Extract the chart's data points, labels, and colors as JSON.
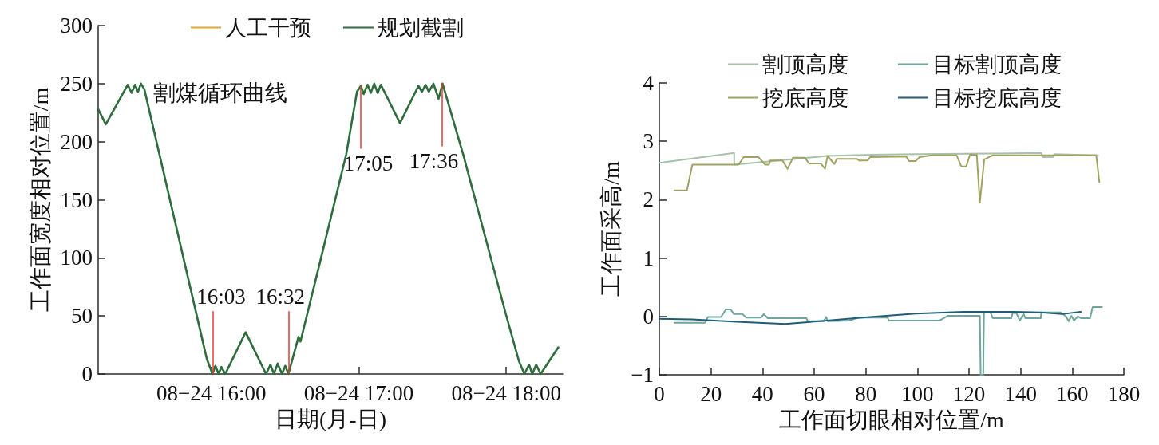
{
  "chart_data": [
    {
      "type": "line",
      "xlabel": "日期(月-日)",
      "ylabel": "工作面宽度相对位置/m",
      "legend": "top",
      "x": [
        "--08-24T15:14",
        "--08-24T15:17:06",
        "--08-24T15:26",
        "--08-24T15:27:36",
        "--08-24T15:29",
        "--08-24T15:30:12",
        "--08-24T15:31:24",
        "--08-24T15:32:48",
        "--08-24T15:58:12",
        "--08-24T16:00:30",
        "--08-24T16:01:42",
        "--08-24T16:03",
        "--08-24T16:04:06",
        "--08-24T16:05:42",
        "--08-24T16:14",
        "--08-24T16:22:18",
        "--08-24T16:24:06",
        "--08-24T16:25:30",
        "--08-24T16:27",
        "--08-24T16:28:48",
        "--08-24T16:30:06",
        "--08-24T16:31:24",
        "--08-24T16:35:30",
        "--08-24T16:36:18",
        "--08-24T16:44:06",
        "--08-24T16:54:54",
        "--08-24T16:59:18",
        "--08-24T17:00:54",
        "--08-24T17:02",
        "--08-24T17:03:36",
        "--08-24T17:04:54",
        "--08-24T17:06:18",
        "--08-24T17:07:42",
        "--08-24T17:09",
        "--08-24T17:16:48",
        "--08-24T17:24:18",
        "--08-24T17:25:42",
        "--08-24T17:27:12",
        "--08-24T17:28:30",
        "--08-24T17:30:24",
        "--08-24T17:32:30",
        "--08-24T17:34:06",
        "--08-24T17:42:30",
        "--08-24T17:59:48",
        "--08-24T18:05:12",
        "--08-24T18:07:24",
        "--08-24T18:09:18",
        "--08-24T18:10:36",
        "--08-24T18:12:12",
        "--08-24T18:14",
        "--08-24T18:21:12"
      ],
      "series": [
        {
          "name": "人工干预",
          "color": "#e3a72f",
          "values": [
            null,
            null,
            null,
            null,
            null,
            null,
            null,
            null,
            null,
            null,
            null,
            null,
            null,
            null,
            null,
            null,
            null,
            null,
            null,
            null,
            null,
            null,
            null,
            null,
            null,
            null,
            null,
            null,
            null,
            null,
            null,
            null,
            null,
            null,
            null,
            null,
            null,
            null,
            null,
            null,
            null,
            null,
            null,
            null,
            null,
            null,
            null,
            null,
            null,
            null,
            null
          ]
        },
        {
          "name": "规划截割",
          "color": "#2e6d3c",
          "values": [
            228,
            215,
            249,
            242,
            249,
            243,
            250,
            245,
            13,
            0,
            7,
            0,
            6,
            0,
            36,
            0,
            8,
            0,
            9,
            0,
            7,
            0,
            32,
            28,
            95,
            189,
            243,
            248,
            241,
            249,
            242,
            250,
            242,
            249,
            216,
            248,
            243,
            249,
            243,
            250,
            237,
            250,
            189,
            52,
            11,
            0,
            8,
            0,
            8,
            0,
            23
          ]
        }
      ],
      "xlim": [
        "--08-24T15:14",
        "--08-24T18:23"
      ],
      "xticks": [
        {
          "value": "--08-24T16:00",
          "label": "08−24 16:00"
        },
        {
          "value": "--08-24T17:00",
          "label": "08−24 17:00"
        },
        {
          "value": "--08-24T18:00",
          "label": "08−24 18:00"
        }
      ],
      "ylim": [
        0,
        300
      ],
      "yticks": [
        0,
        50,
        100,
        150,
        200,
        250,
        300
      ],
      "annotations": [
        "割煤循环曲线",
        {
          "text": "16:03",
          "x": "--08-24T16:00:48",
          "y": 0
        },
        {
          "text": "16:32",
          "x": "--08-24T16:31:24",
          "y": 0
        },
        {
          "text": "17:05",
          "x": "--08-24T17:00:42",
          "y": 248
        },
        {
          "text": "17:36",
          "x": "--08-24T17:33:48",
          "y": 250
        }
      ]
    },
    {
      "type": "line",
      "xlabel": "工作面切眼相对位置/m",
      "ylabel": "工作面采高/m",
      "legend": "top",
      "series": [
        {
          "name": "割顶高度",
          "color": "#a6c2a9",
          "x": [
            0,
            29,
            29,
            41.5,
            65,
            82,
            100,
            148,
            148.5,
            152.5,
            153,
            170
          ],
          "values": [
            2.63,
            2.8,
            2.6,
            2.65,
            2.75,
            2.77,
            2.78,
            2.8,
            2.73,
            2.73,
            2.78,
            2.76
          ]
        },
        {
          "name": "挖底高度",
          "color": "#a2a363",
          "x": [
            5.9,
            10.7,
            12.8,
            30.7,
            32.7,
            38.4,
            41,
            42.5,
            43,
            47.7,
            49.7,
            51.8,
            56.4,
            58,
            62.6,
            64.2,
            65.2,
            67.8,
            68.8,
            76.6,
            77.4,
            80.7,
            81.7,
            95.7,
            96.7,
            99.3,
            100.8,
            105.5,
            115.2,
            117,
            118.9,
            120.4,
            123,
            124.2,
            125.9,
            129.2,
            169.3,
            170.5
          ],
          "values": [
            2.16,
            2.16,
            2.6,
            2.6,
            2.73,
            2.73,
            2.6,
            2.6,
            2.67,
            2.67,
            2.53,
            2.72,
            2.72,
            2.62,
            2.62,
            2.53,
            2.75,
            2.61,
            2.7,
            2.7,
            2.67,
            2.67,
            2.73,
            2.74,
            2.66,
            2.66,
            2.73,
            2.76,
            2.76,
            2.57,
            2.57,
            2.77,
            2.77,
            1.95,
            2.69,
            2.76,
            2.76,
            2.3
          ]
        },
        {
          "name": "目标割顶高度",
          "color": "#6ea69e",
          "x": [
            5.9,
            17.7,
            18.8,
            23.9,
            25.8,
            27.6,
            28.9,
            32.2,
            33.7,
            39.4,
            40.5,
            42,
            57,
            57.5,
            63.7,
            64.7,
            65.2,
            73.5,
            77.1,
            88.5,
            88.9,
            108.6,
            111.7,
            121.5,
            124.2,
            124.5,
            125.5,
            125.8,
            128.2,
            129.2,
            136.4,
            136.9,
            138.3,
            139.7,
            141.1,
            141.8,
            147.8,
            148,
            155.5,
            157.6,
            158.6,
            159.7,
            160.7,
            162.2,
            163.3,
            166.9,
            167.9,
            171.5
          ],
          "values": [
            -0.11,
            -0.11,
            -0.01,
            -0.01,
            0.12,
            0.12,
            0.04,
            0.04,
            -0.02,
            -0.02,
            0.04,
            -0.03,
            -0.03,
            -0.08,
            -0.08,
            -0.01,
            -0.08,
            -0.07,
            -0.02,
            -0.02,
            -0.07,
            -0.07,
            0.01,
            0.01,
            0.01,
            -1,
            -1,
            0.08,
            0.08,
            -0.03,
            -0.03,
            0.06,
            0.06,
            -0.07,
            0.05,
            -0.03,
            -0.03,
            0.07,
            0.07,
            0,
            -0.08,
            0.01,
            -0.07,
            0,
            -0.03,
            -0.03,
            0.16,
            0.16
          ]
        },
        {
          "name": "目标挖底高度",
          "color": "#1f5d78",
          "x": [
            0,
            12.6,
            30,
            48.7,
            65,
            78.6,
            99.3,
            117.9,
            136.4,
            147.8,
            156,
            163.3
          ],
          "values": [
            -0.04,
            -0.05,
            -0.09,
            -0.13,
            -0.07,
            -0.02,
            0.05,
            0.08,
            0.08,
            0.07,
            0.04,
            0.08
          ]
        }
      ],
      "xlim": [
        0,
        180
      ],
      "xticks": [
        0,
        20,
        40,
        60,
        80,
        100,
        120,
        140,
        160,
        180
      ],
      "ylim": [
        -1,
        4
      ],
      "yticks": [
        -1,
        0,
        1,
        2,
        3,
        4
      ]
    }
  ]
}
